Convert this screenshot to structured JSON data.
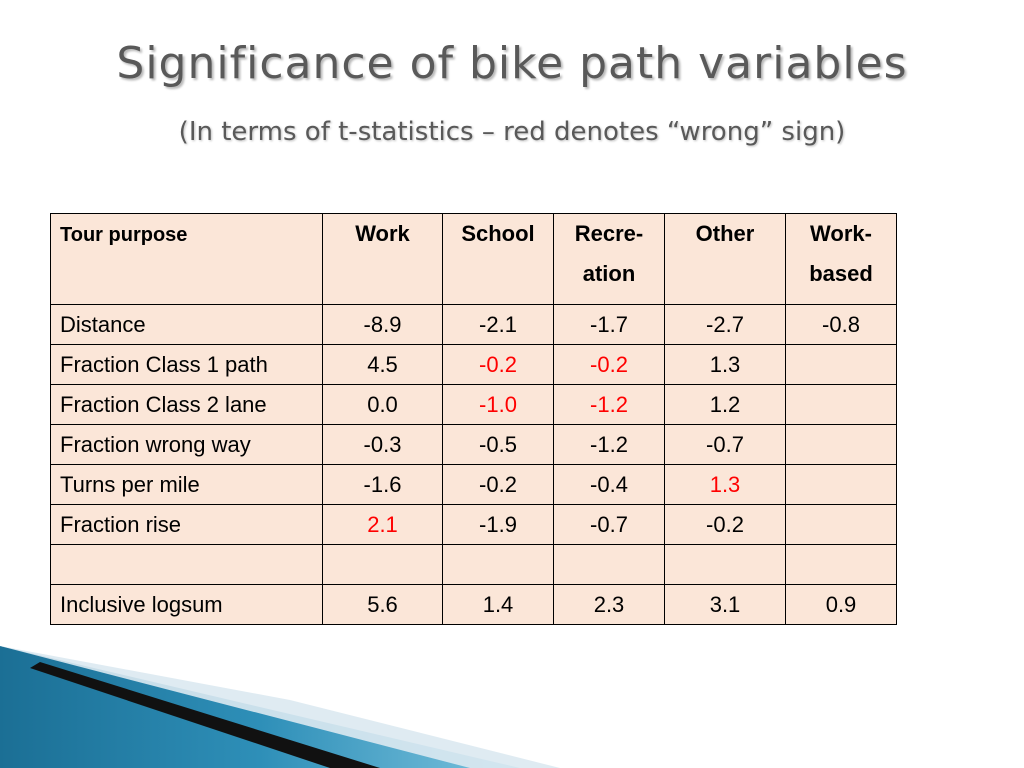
{
  "slide": {
    "title": "Significance of bike path variables",
    "subtitle": "(In terms of t-statistics – red denotes “wrong” sign)"
  },
  "table": {
    "headers": [
      {
        "line1": "Tour purpose",
        "line2": ""
      },
      {
        "line1": "Work",
        "line2": ""
      },
      {
        "line1": "School",
        "line2": ""
      },
      {
        "line1": "Recre-",
        "line2": "ation"
      },
      {
        "line1": "Other",
        "line2": ""
      },
      {
        "line1": "Work-",
        "line2": "based"
      }
    ],
    "rows": [
      {
        "label": "Distance",
        "cells": [
          "-8.9",
          "-2.1",
          "-1.7",
          "-2.7",
          "-0.8"
        ]
      },
      {
        "label": "Fraction Class 1 path",
        "cells": [
          "4.5",
          "-0.2",
          "-0.2",
          "1.3",
          ""
        ]
      },
      {
        "label": "Fraction Class 2 lane",
        "cells": [
          "0.0",
          "-1.0",
          "-1.2",
          "1.2",
          ""
        ]
      },
      {
        "label": "Fraction wrong way",
        "cells": [
          "-0.3",
          "-0.5",
          "-1.2",
          "-0.7",
          ""
        ]
      },
      {
        "label": "Turns per mile",
        "cells": [
          "-1.6",
          "-0.2",
          "-0.4",
          "1.3",
          ""
        ]
      },
      {
        "label": "Fraction rise",
        "cells": [
          "2.1",
          "-1.9",
          "-0.7",
          "-0.2",
          ""
        ]
      },
      {
        "label": "",
        "cells": [
          "",
          "",
          "",
          "",
          ""
        ]
      },
      {
        "label": "Inclusive logsum",
        "cells": [
          "5.6",
          "1.4",
          "2.3",
          "3.1",
          "0.9"
        ]
      }
    ],
    "wrong_sign_color": "#ff0000"
  }
}
